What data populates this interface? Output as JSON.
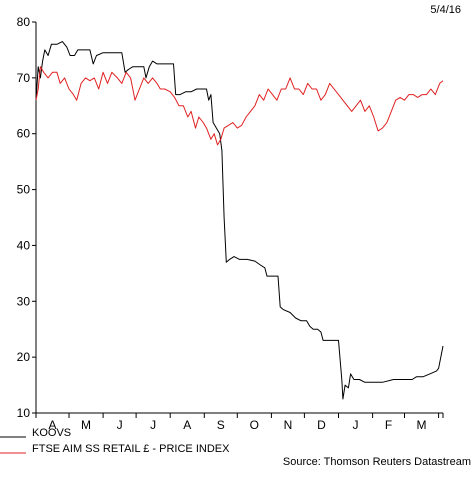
{
  "date_label": "5/4/16",
  "source": "Source: Thomson Reuters Datastream",
  "chart_data": {
    "type": "line",
    "title": "",
    "xlabel": "",
    "ylabel": "",
    "ylim": [
      10,
      80
    ],
    "yticks": [
      10,
      20,
      30,
      40,
      50,
      60,
      70,
      80
    ],
    "xlim": [
      "2015-04-01",
      "2016-04-05"
    ],
    "month_labels": [
      "A",
      "M",
      "J",
      "J",
      "A",
      "S",
      "O",
      "N",
      "D",
      "J",
      "F",
      "M"
    ],
    "grid": false,
    "legend_position": "bottom-left",
    "series": [
      {
        "name": "KOOVS",
        "color": "#000000",
        "points": [
          [
            "2015-04-01",
            66
          ],
          [
            "2015-04-03",
            72
          ],
          [
            "2015-04-05",
            70
          ],
          [
            "2015-04-07",
            73
          ],
          [
            "2015-04-09",
            75
          ],
          [
            "2015-04-12",
            74
          ],
          [
            "2015-04-15",
            76
          ],
          [
            "2015-04-20",
            76
          ],
          [
            "2015-04-25",
            76.5
          ],
          [
            "2015-04-29",
            75.5
          ],
          [
            "2015-05-02",
            74
          ],
          [
            "2015-05-06",
            74
          ],
          [
            "2015-05-09",
            75
          ],
          [
            "2015-05-14",
            75
          ],
          [
            "2015-05-20",
            75
          ],
          [
            "2015-05-23",
            72.5
          ],
          [
            "2015-05-26",
            74
          ],
          [
            "2015-06-01",
            74.5
          ],
          [
            "2015-06-10",
            74.5
          ],
          [
            "2015-06-18",
            74.5
          ],
          [
            "2015-06-21",
            71
          ],
          [
            "2015-06-24",
            71.5
          ],
          [
            "2015-06-28",
            72
          ],
          [
            "2015-07-03",
            72
          ],
          [
            "2015-07-08",
            72
          ],
          [
            "2015-07-10",
            70
          ],
          [
            "2015-07-13",
            72
          ],
          [
            "2015-07-16",
            73
          ],
          [
            "2015-07-20",
            72.5
          ],
          [
            "2015-07-26",
            72.5
          ],
          [
            "2015-08-01",
            72.5
          ],
          [
            "2015-08-04",
            72.5
          ],
          [
            "2015-08-06",
            67
          ],
          [
            "2015-08-10",
            67
          ],
          [
            "2015-08-15",
            67.5
          ],
          [
            "2015-08-20",
            67.5
          ],
          [
            "2015-08-25",
            68
          ],
          [
            "2015-08-30",
            68
          ],
          [
            "2015-09-03",
            68
          ],
          [
            "2015-09-05",
            66
          ],
          [
            "2015-09-07",
            67
          ],
          [
            "2015-09-09",
            62
          ],
          [
            "2015-09-12",
            61
          ],
          [
            "2015-09-15",
            60
          ],
          [
            "2015-09-17",
            57
          ],
          [
            "2015-09-19",
            45
          ],
          [
            "2015-09-21",
            37
          ],
          [
            "2015-09-24",
            37.5
          ],
          [
            "2015-09-28",
            38
          ],
          [
            "2015-10-03",
            37.5
          ],
          [
            "2015-10-10",
            37.5
          ],
          [
            "2015-10-17",
            37.2
          ],
          [
            "2015-10-22",
            36.5
          ],
          [
            "2015-10-26",
            36
          ],
          [
            "2015-10-28",
            34.5
          ],
          [
            "2015-11-03",
            34.5
          ],
          [
            "2015-11-07",
            34.5
          ],
          [
            "2015-11-09",
            29
          ],
          [
            "2015-11-12",
            28.5
          ],
          [
            "2015-11-18",
            28
          ],
          [
            "2015-11-23",
            27
          ],
          [
            "2015-11-28",
            26.5
          ],
          [
            "2015-12-03",
            26.5
          ],
          [
            "2015-12-06",
            25.5
          ],
          [
            "2015-12-09",
            25
          ],
          [
            "2015-12-13",
            25
          ],
          [
            "2015-12-16",
            24.5
          ],
          [
            "2015-12-18",
            23
          ],
          [
            "2015-12-20",
            23
          ],
          [
            "2016-01-01",
            23
          ],
          [
            "2016-01-04",
            16
          ],
          [
            "2016-01-05",
            12.5
          ],
          [
            "2016-01-07",
            15
          ],
          [
            "2016-01-10",
            14.5
          ],
          [
            "2016-01-12",
            17
          ],
          [
            "2016-01-15",
            16
          ],
          [
            "2016-01-20",
            16
          ],
          [
            "2016-01-25",
            15.5
          ],
          [
            "2016-02-01",
            15.5
          ],
          [
            "2016-02-10",
            15.5
          ],
          [
            "2016-02-20",
            16
          ],
          [
            "2016-03-01",
            16
          ],
          [
            "2016-03-08",
            16
          ],
          [
            "2016-03-12",
            16.5
          ],
          [
            "2016-03-18",
            16.5
          ],
          [
            "2016-03-24",
            17
          ],
          [
            "2016-03-30",
            17.5
          ],
          [
            "2016-04-01",
            18
          ],
          [
            "2016-04-05",
            22
          ]
        ]
      },
      {
        "name": "FTSE AIM SS RETAIL £ - PRICE INDEX",
        "color": "#e02020",
        "points": [
          [
            "2015-04-01",
            66
          ],
          [
            "2015-04-03",
            68
          ],
          [
            "2015-04-05",
            72
          ],
          [
            "2015-04-08",
            71
          ],
          [
            "2015-04-12",
            70
          ],
          [
            "2015-04-16",
            71
          ],
          [
            "2015-04-20",
            71
          ],
          [
            "2015-04-23",
            69
          ],
          [
            "2015-04-27",
            70
          ],
          [
            "2015-05-01",
            68
          ],
          [
            "2015-05-05",
            67
          ],
          [
            "2015-05-08",
            66
          ],
          [
            "2015-05-12",
            69
          ],
          [
            "2015-05-16",
            70
          ],
          [
            "2015-05-20",
            69.5
          ],
          [
            "2015-05-24",
            70
          ],
          [
            "2015-05-28",
            68
          ],
          [
            "2015-06-01",
            71
          ],
          [
            "2015-06-05",
            69
          ],
          [
            "2015-06-09",
            71
          ],
          [
            "2015-06-14",
            70
          ],
          [
            "2015-06-18",
            69
          ],
          [
            "2015-06-22",
            71
          ],
          [
            "2015-06-26",
            70
          ],
          [
            "2015-06-30",
            66
          ],
          [
            "2015-07-04",
            68
          ],
          [
            "2015-07-08",
            70
          ],
          [
            "2015-07-12",
            69
          ],
          [
            "2015-07-16",
            70
          ],
          [
            "2015-07-20",
            69
          ],
          [
            "2015-07-23",
            68
          ],
          [
            "2015-07-27",
            68
          ],
          [
            "2015-08-01",
            67.5
          ],
          [
            "2015-08-05",
            66.5
          ],
          [
            "2015-08-09",
            65
          ],
          [
            "2015-08-13",
            65
          ],
          [
            "2015-08-17",
            63
          ],
          [
            "2015-08-20",
            64
          ],
          [
            "2015-08-24",
            61
          ],
          [
            "2015-08-27",
            63
          ],
          [
            "2015-08-31",
            62
          ],
          [
            "2015-09-03",
            61
          ],
          [
            "2015-09-07",
            59
          ],
          [
            "2015-09-10",
            60
          ],
          [
            "2015-09-13",
            58
          ],
          [
            "2015-09-16",
            59
          ],
          [
            "2015-09-19",
            61
          ],
          [
            "2015-09-23",
            61.5
          ],
          [
            "2015-09-27",
            62
          ],
          [
            "2015-10-01",
            61
          ],
          [
            "2015-10-05",
            61.5
          ],
          [
            "2015-10-09",
            63
          ],
          [
            "2015-10-13",
            64
          ],
          [
            "2015-10-17",
            65
          ],
          [
            "2015-10-21",
            67
          ],
          [
            "2015-10-25",
            66
          ],
          [
            "2015-10-29",
            68
          ],
          [
            "2015-11-02",
            67
          ],
          [
            "2015-11-06",
            66
          ],
          [
            "2015-11-10",
            68
          ],
          [
            "2015-11-14",
            68
          ],
          [
            "2015-11-18",
            70
          ],
          [
            "2015-11-22",
            68
          ],
          [
            "2015-11-26",
            68
          ],
          [
            "2015-11-30",
            67
          ],
          [
            "2015-12-04",
            69
          ],
          [
            "2015-12-08",
            68
          ],
          [
            "2015-12-12",
            68
          ],
          [
            "2015-12-16",
            66
          ],
          [
            "2015-12-20",
            67
          ],
          [
            "2015-12-24",
            69
          ],
          [
            "2015-12-28",
            68
          ],
          [
            "2016-01-01",
            67
          ],
          [
            "2016-01-05",
            66
          ],
          [
            "2016-01-09",
            65
          ],
          [
            "2016-01-13",
            64
          ],
          [
            "2016-01-17",
            65
          ],
          [
            "2016-01-21",
            66
          ],
          [
            "2016-01-25",
            64
          ],
          [
            "2016-01-29",
            65
          ],
          [
            "2016-02-02",
            63
          ],
          [
            "2016-02-06",
            60.5
          ],
          [
            "2016-02-10",
            61
          ],
          [
            "2016-02-14",
            62
          ],
          [
            "2016-02-18",
            64
          ],
          [
            "2016-02-22",
            66
          ],
          [
            "2016-02-26",
            66.5
          ],
          [
            "2016-03-01",
            66
          ],
          [
            "2016-03-05",
            67
          ],
          [
            "2016-03-09",
            67
          ],
          [
            "2016-03-13",
            66.5
          ],
          [
            "2016-03-17",
            67
          ],
          [
            "2016-03-21",
            67
          ],
          [
            "2016-03-25",
            68
          ],
          [
            "2016-03-29",
            67
          ],
          [
            "2016-04-02",
            69
          ],
          [
            "2016-04-05",
            69.5
          ]
        ]
      }
    ]
  }
}
